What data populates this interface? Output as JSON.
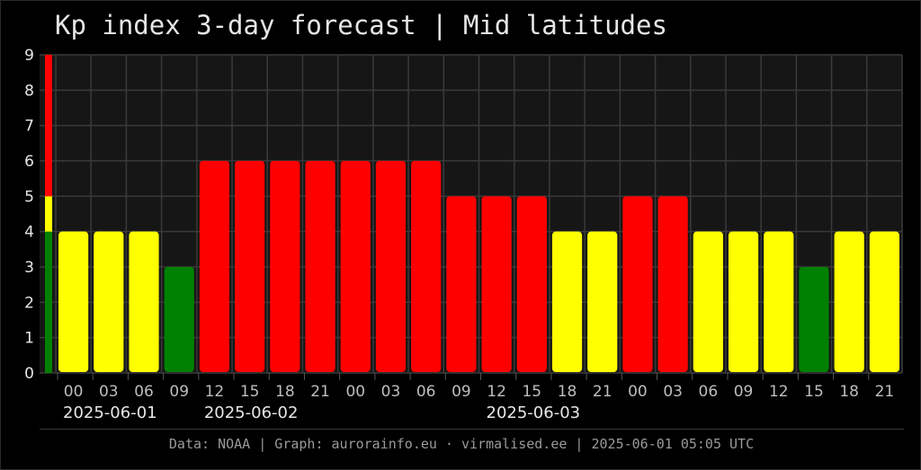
{
  "title": "Kp index 3-day forecast | Mid latitudes",
  "footer": "Data: NOAA | Graph: aurorainfo.eu · virmalised.ee | 2025-06-01 05:05 UTC",
  "colors": {
    "green": "#008000",
    "yellow": "#ffff00",
    "red": "#ff0000",
    "plot_background": "#161616",
    "grid": "#3a3a3a",
    "text": "#e6e6e6"
  },
  "chart_data": {
    "type": "bar",
    "title": "Kp index 3-day forecast | Mid latitudes",
    "ylim": [
      0,
      9
    ],
    "yticks": [
      0,
      1,
      2,
      3,
      4,
      5,
      6,
      7,
      8,
      9
    ],
    "grid": true,
    "color_scale": [
      {
        "range": [
          0,
          4
        ],
        "color": "green"
      },
      {
        "range": [
          4,
          5
        ],
        "color": "yellow"
      },
      {
        "range": [
          5,
          9
        ],
        "color": "red"
      }
    ],
    "days": [
      {
        "label": "2025-06-01",
        "hours": [
          "00",
          "03",
          "06",
          "09"
        ]
      },
      {
        "label": "2025-06-02",
        "hours": [
          "12",
          "15",
          "18",
          "21",
          "00",
          "03",
          "06",
          "09"
        ]
      },
      {
        "label": "2025-06-03",
        "hours": [
          "12",
          "15",
          "18",
          "21",
          "00",
          "03",
          "06",
          "09",
          "12",
          "15",
          "18",
          "21"
        ]
      }
    ],
    "categories": [
      "00",
      "03",
      "06",
      "09",
      "12",
      "15",
      "18",
      "21",
      "00",
      "03",
      "06",
      "09",
      "12",
      "15",
      "18",
      "21",
      "00",
      "03",
      "06",
      "09",
      "12",
      "15",
      "18",
      "21"
    ],
    "values": [
      4,
      4,
      4,
      3,
      6,
      6,
      6,
      6,
      6,
      6,
      6,
      5,
      5,
      5,
      4,
      4,
      5,
      5,
      4,
      4,
      4,
      3,
      4,
      4
    ],
    "bar_colors": [
      "yellow",
      "yellow",
      "yellow",
      "green",
      "red",
      "red",
      "red",
      "red",
      "red",
      "red",
      "red",
      "red",
      "red",
      "red",
      "yellow",
      "yellow",
      "red",
      "red",
      "yellow",
      "yellow",
      "yellow",
      "green",
      "yellow",
      "yellow"
    ]
  }
}
